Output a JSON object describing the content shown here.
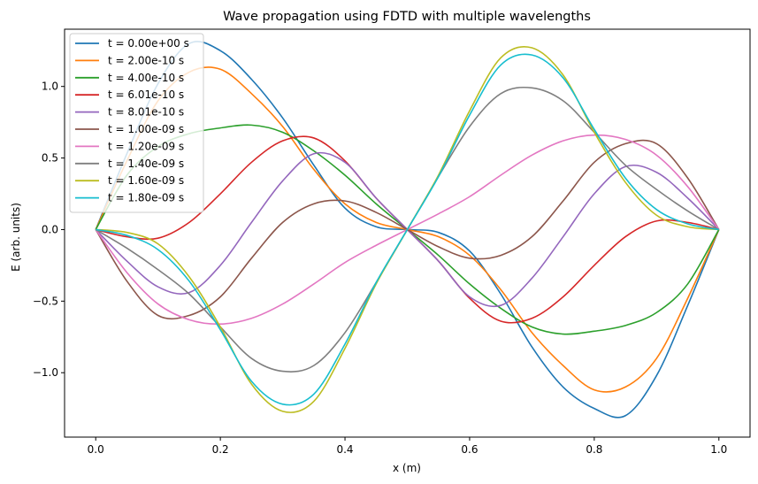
{
  "chart_data": {
    "type": "line",
    "title": "Wave propagation using FDTD with multiple wavelengths",
    "xlabel": "x (m)",
    "ylabel": "E (arb. units)",
    "xlim": [
      -0.05,
      1.05
    ],
    "ylim": [
      -1.45,
      1.4
    ],
    "xticks": [
      0.0,
      0.2,
      0.4,
      0.6,
      0.8,
      1.0
    ],
    "xtick_labels": [
      "0.0",
      "0.2",
      "0.4",
      "0.6",
      "0.8",
      "1.0"
    ],
    "yticks": [
      -1.0,
      -0.5,
      0.0,
      0.5,
      1.0
    ],
    "ytick_labels": [
      "−1.0",
      "−0.5",
      "0.0",
      "0.5",
      "1.0"
    ],
    "grid": false,
    "legend_position": "top-left",
    "x": [
      0.0,
      0.05,
      0.1,
      0.15,
      0.2,
      0.25,
      0.3,
      0.35,
      0.4,
      0.45,
      0.5,
      0.55,
      0.6,
      0.65,
      0.7,
      0.75,
      0.8,
      0.85,
      0.9,
      0.95,
      1.0
    ],
    "series": [
      {
        "name": "t = 0.00e+00 s",
        "color": "#1f77b4",
        "values": [
          0.0,
          0.53,
          1.02,
          1.3,
          1.25,
          1.05,
          0.78,
          0.45,
          0.15,
          0.02,
          0.0,
          -0.02,
          -0.15,
          -0.45,
          -0.82,
          -1.1,
          -1.25,
          -1.3,
          -1.02,
          -0.53,
          0.0
        ]
      },
      {
        "name": "t = 2.00e-10 s",
        "color": "#ff7f0e",
        "values": [
          0.0,
          0.48,
          0.9,
          1.1,
          1.12,
          0.95,
          0.72,
          0.42,
          0.18,
          0.05,
          0.0,
          -0.05,
          -0.18,
          -0.42,
          -0.72,
          -0.95,
          -1.12,
          -1.1,
          -0.9,
          -0.48,
          0.0
        ]
      },
      {
        "name": "t = 4.00e-10 s",
        "color": "#2ca02c",
        "values": [
          0.0,
          0.38,
          0.58,
          0.67,
          0.71,
          0.73,
          0.68,
          0.55,
          0.38,
          0.18,
          0.0,
          -0.18,
          -0.38,
          -0.55,
          -0.68,
          -0.73,
          -0.71,
          -0.67,
          -0.58,
          -0.38,
          0.0
        ]
      },
      {
        "name": "t = 6.01e-10 s",
        "color": "#d62728",
        "values": [
          0.0,
          -0.05,
          -0.06,
          0.05,
          0.25,
          0.47,
          0.62,
          0.64,
          0.48,
          0.22,
          0.0,
          -0.22,
          -0.48,
          -0.64,
          -0.62,
          -0.47,
          -0.25,
          -0.05,
          0.06,
          0.05,
          0.0
        ]
      },
      {
        "name": "t = 8.01e-10 s",
        "color": "#9467bd",
        "values": [
          0.0,
          -0.22,
          -0.4,
          -0.44,
          -0.25,
          0.05,
          0.34,
          0.53,
          0.47,
          0.22,
          0.0,
          -0.22,
          -0.47,
          -0.53,
          -0.34,
          -0.05,
          0.25,
          0.44,
          0.4,
          0.22,
          0.0
        ]
      },
      {
        "name": "t = 1.00e-09 s",
        "color": "#8c564b",
        "values": [
          0.0,
          -0.36,
          -0.6,
          -0.6,
          -0.47,
          -0.2,
          0.05,
          0.18,
          0.2,
          0.12,
          0.0,
          -0.12,
          -0.2,
          -0.18,
          -0.05,
          0.2,
          0.47,
          0.6,
          0.6,
          0.36,
          0.0
        ]
      },
      {
        "name": "t = 1.20e-09 s",
        "color": "#e377c2",
        "values": [
          0.0,
          -0.3,
          -0.52,
          -0.63,
          -0.66,
          -0.62,
          -0.52,
          -0.38,
          -0.23,
          -0.11,
          0.0,
          0.11,
          0.23,
          0.38,
          0.52,
          0.62,
          0.66,
          0.63,
          0.52,
          0.3,
          0.0
        ]
      },
      {
        "name": "t = 1.40e-09 s",
        "color": "#7f7f7f",
        "values": [
          0.0,
          -0.13,
          -0.28,
          -0.45,
          -0.68,
          -0.9,
          -0.99,
          -0.95,
          -0.72,
          -0.37,
          0.0,
          0.37,
          0.72,
          0.95,
          0.99,
          0.9,
          0.68,
          0.45,
          0.28,
          0.13,
          0.0
        ]
      },
      {
        "name": "t = 1.60e-09 s",
        "color": "#bcbd22",
        "values": [
          0.0,
          -0.02,
          -0.1,
          -0.33,
          -0.68,
          -1.08,
          -1.27,
          -1.2,
          -0.83,
          -0.38,
          0.0,
          0.38,
          0.83,
          1.2,
          1.27,
          1.08,
          0.68,
          0.33,
          0.1,
          0.02,
          0.0
        ]
      },
      {
        "name": "t = 1.80e-09 s",
        "color": "#17becf",
        "values": [
          0.0,
          -0.04,
          -0.14,
          -0.36,
          -0.7,
          -1.06,
          -1.22,
          -1.15,
          -0.8,
          -0.37,
          0.0,
          0.37,
          0.8,
          1.15,
          1.22,
          1.06,
          0.7,
          0.36,
          0.14,
          0.04,
          0.0
        ]
      }
    ]
  }
}
